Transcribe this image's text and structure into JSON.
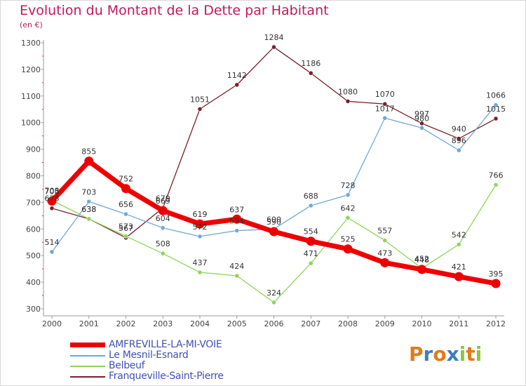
{
  "title": "Evolution du Montant de la Dette par Habitant",
  "subtitle": "(en €)",
  "chart_data": {
    "type": "line",
    "x": [
      "2000",
      "2001",
      "2002",
      "2003",
      "2004",
      "2005",
      "2006",
      "2007",
      "2008",
      "2009",
      "2010",
      "2011",
      "2012"
    ],
    "ylim": [
      300,
      1300
    ],
    "yticks": [
      300,
      400,
      500,
      600,
      700,
      800,
      900,
      1000,
      1100,
      1200,
      1300
    ],
    "grid": false,
    "legend_position": "bottom-left",
    "series": [
      {
        "name": "AMFREVILLE-LA-MI-VOIE",
        "color": "#ee0000",
        "values": [
          705,
          855,
          752,
          669,
          619,
          637,
          590,
          554,
          525,
          473,
          448,
          421,
          395
        ]
      },
      {
        "name": "Le Mesnil-Esnard",
        "color": "#6fa8d6",
        "values": [
          514,
          703,
          656,
          604,
          572,
          594,
          600,
          688,
          728,
          1017,
          980,
          896,
          1066
        ]
      },
      {
        "name": "Belbeuf",
        "color": "#8fd35c",
        "values": [
          708,
          638,
          573,
          508,
          437,
          424,
          324,
          471,
          642,
          557,
          452,
          542,
          766
        ]
      },
      {
        "name": "Franqueville-Saint-Pierre",
        "color": "#7b1f2a",
        "values": [
          678,
          638,
          567,
          679,
          1051,
          1142,
          1284,
          1186,
          1080,
          1070,
          997,
          940,
          1015
        ]
      }
    ]
  },
  "logo": {
    "letters": [
      "P",
      "r",
      "o",
      "x",
      "i",
      "t",
      "i"
    ],
    "colors": [
      "#e07b1a",
      "#3a7fc1",
      "#e07b1a",
      "#3a7fc1",
      "#8dc63f",
      "#e07b1a",
      "#8dc63f"
    ]
  }
}
